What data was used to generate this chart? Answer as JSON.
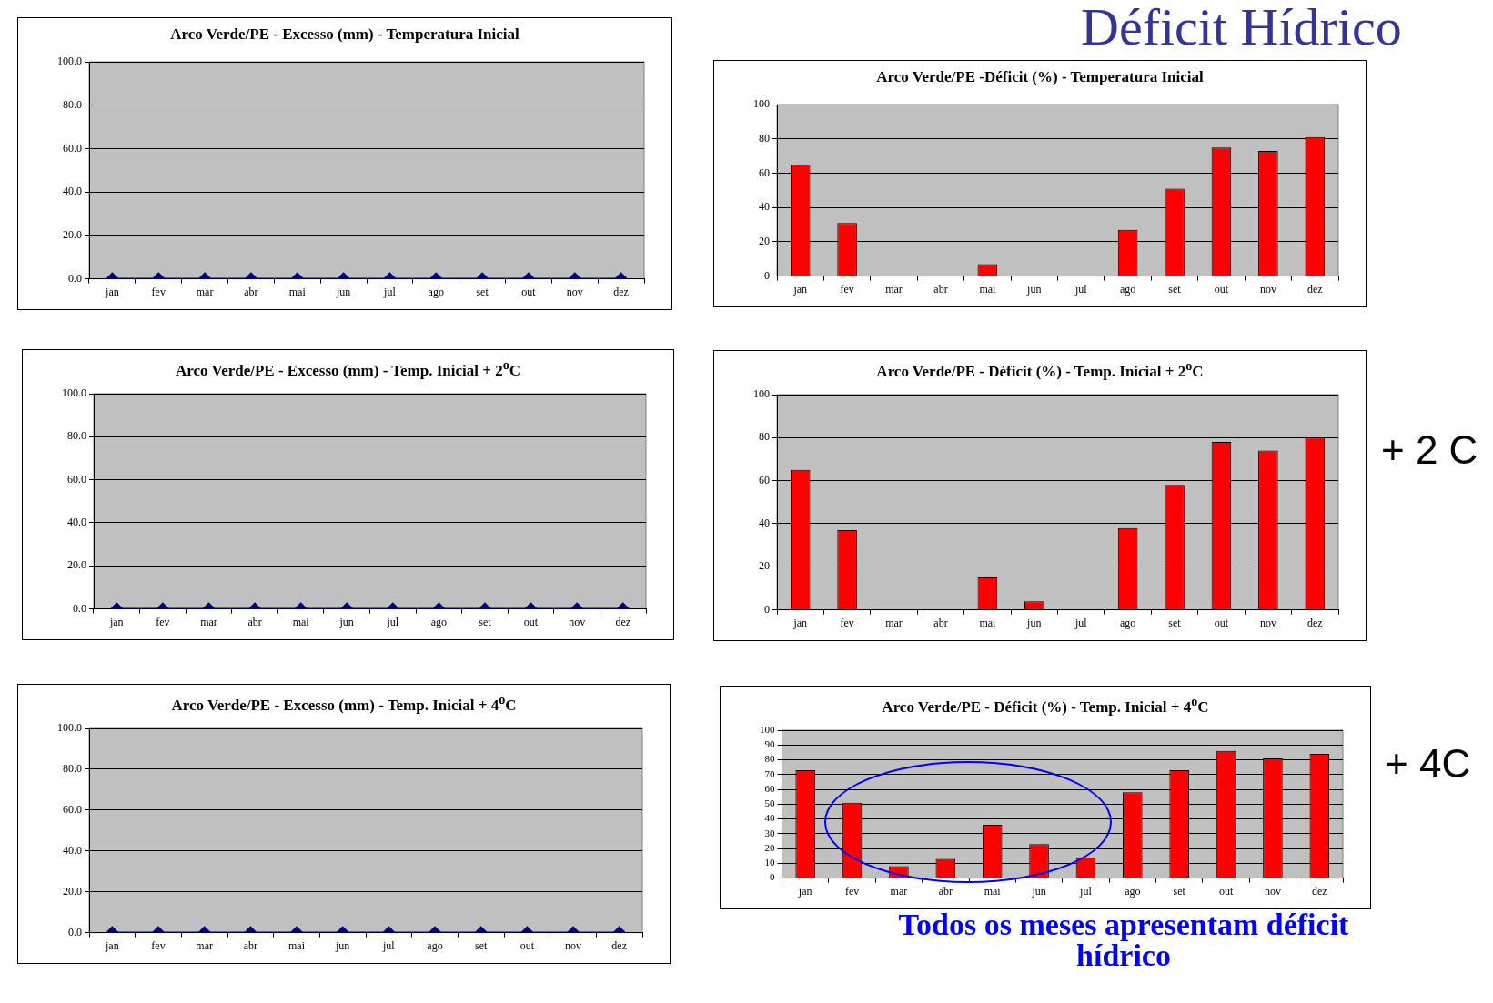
{
  "chart_data": [
    {
      "type": "line",
      "title": "Arco Verde/PE - Excesso (mm) - Temperatura Inicial",
      "categories": [
        "jan",
        "fev",
        "mar",
        "abr",
        "mai",
        "jun",
        "jul",
        "ago",
        "set",
        "out",
        "nov",
        "dez"
      ],
      "series": [
        {
          "color": "#000080",
          "values": [
            0,
            0,
            0,
            0,
            0,
            0,
            0,
            0,
            0,
            0,
            0,
            0
          ]
        }
      ],
      "ylim": [
        0,
        100
      ],
      "yticks": [
        {
          "value": 0,
          "label": "0.0"
        },
        {
          "value": 20,
          "label": "20.0"
        },
        {
          "value": 40,
          "label": "40.0"
        },
        {
          "value": 60,
          "label": "60.0"
        },
        {
          "value": 80,
          "label": "80.0"
        },
        {
          "value": 100,
          "label": "100.0"
        }
      ],
      "grid": "y",
      "marker": "diamond"
    },
    {
      "type": "bar",
      "title": "Arco Verde/PE -Déficit (%) - Temperatura Inicial",
      "categories": [
        "jan",
        "fev",
        "mar",
        "abr",
        "mai",
        "jun",
        "jul",
        "ago",
        "set",
        "out",
        "nov",
        "dez"
      ],
      "series": [
        {
          "color": "#ff0000",
          "values": [
            65,
            31,
            0,
            0,
            7,
            0,
            0,
            27,
            51,
            75,
            73,
            81
          ]
        }
      ],
      "ylim": [
        0,
        100
      ],
      "yticks": [
        0,
        20,
        40,
        60,
        80,
        100
      ],
      "grid": "y",
      "annotations": [
        "Déficit Hídrico"
      ]
    },
    {
      "type": "line",
      "title": "Arco Verde/PE  - Excesso (mm) - Temp. Inicial + 2$^{o}$C",
      "categories": [
        "jan",
        "fev",
        "mar",
        "abr",
        "mai",
        "jun",
        "jul",
        "ago",
        "set",
        "out",
        "nov",
        "dez"
      ],
      "series": [
        {
          "color": "#000080",
          "values": [
            0,
            0,
            0,
            0,
            0,
            0,
            0,
            0,
            0,
            0,
            0,
            0
          ]
        }
      ],
      "ylim": [
        0,
        100
      ],
      "yticks": [
        {
          "value": 0,
          "label": "0.0"
        },
        {
          "value": 20,
          "label": "20.0"
        },
        {
          "value": 40,
          "label": "40.0"
        },
        {
          "value": 60,
          "label": "60.0"
        },
        {
          "value": 80,
          "label": "80.0"
        },
        {
          "value": 100,
          "label": "100.0"
        }
      ],
      "grid": "y",
      "marker": "diamond"
    },
    {
      "type": "bar",
      "title": "Arco Verde/PE  - Déficit (%) - Temp. Inicial + 2$^{o}$C",
      "categories": [
        "jan",
        "fev",
        "mar",
        "abr",
        "mai",
        "jun",
        "jul",
        "ago",
        "set",
        "out",
        "nov",
        "dez"
      ],
      "series": [
        {
          "color": "#ff0000",
          "values": [
            65,
            37,
            0,
            0,
            15,
            4,
            0,
            38,
            58,
            78,
            74,
            80
          ]
        }
      ],
      "ylim": [
        0,
        100
      ],
      "yticks": [
        0,
        20,
        40,
        60,
        80,
        100
      ],
      "grid": "y",
      "annotations": [
        "+ 2 C"
      ]
    },
    {
      "type": "line",
      "title": "Arco Verde/PE  - Excesso (mm) - Temp. Inicial + 4$^{o}$C",
      "categories": [
        "jan",
        "fev",
        "mar",
        "abr",
        "mai",
        "jun",
        "jul",
        "ago",
        "set",
        "out",
        "nov",
        "dez"
      ],
      "series": [
        {
          "color": "#000080",
          "values": [
            0,
            0,
            0,
            0,
            0,
            0,
            0,
            0,
            0,
            0,
            0,
            0
          ]
        }
      ],
      "ylim": [
        0,
        100
      ],
      "yticks": [
        {
          "value": 0,
          "label": "0.0"
        },
        {
          "value": 20,
          "label": "20.0"
        },
        {
          "value": 40,
          "label": "40.0"
        },
        {
          "value": 60,
          "label": "60.0"
        },
        {
          "value": 80,
          "label": "80.0"
        },
        {
          "value": 100,
          "label": "100.0"
        }
      ],
      "grid": "y",
      "marker": "diamond"
    },
    {
      "type": "bar",
      "title": "Arco Verde/PE  - Déficit (%) - Temp. Inicial + 4$^{o}$C",
      "categories": [
        "jan",
        "fev",
        "mar",
        "abr",
        "mai",
        "jun",
        "jul",
        "ago",
        "set",
        "out",
        "nov",
        "dez"
      ],
      "series": [
        {
          "color": "#ff0000",
          "values": [
            73,
            51,
            8,
            13,
            36,
            23,
            14,
            58,
            73,
            86,
            81,
            84
          ]
        }
      ],
      "ylim": [
        0,
        100
      ],
      "yticks": [
        0,
        10,
        20,
        30,
        40,
        50,
        60,
        70,
        80,
        90,
        100
      ],
      "grid": "y",
      "annotations": [
        "+ 4C",
        "Todos os meses apresentam déficit hídrico"
      ]
    }
  ]
}
